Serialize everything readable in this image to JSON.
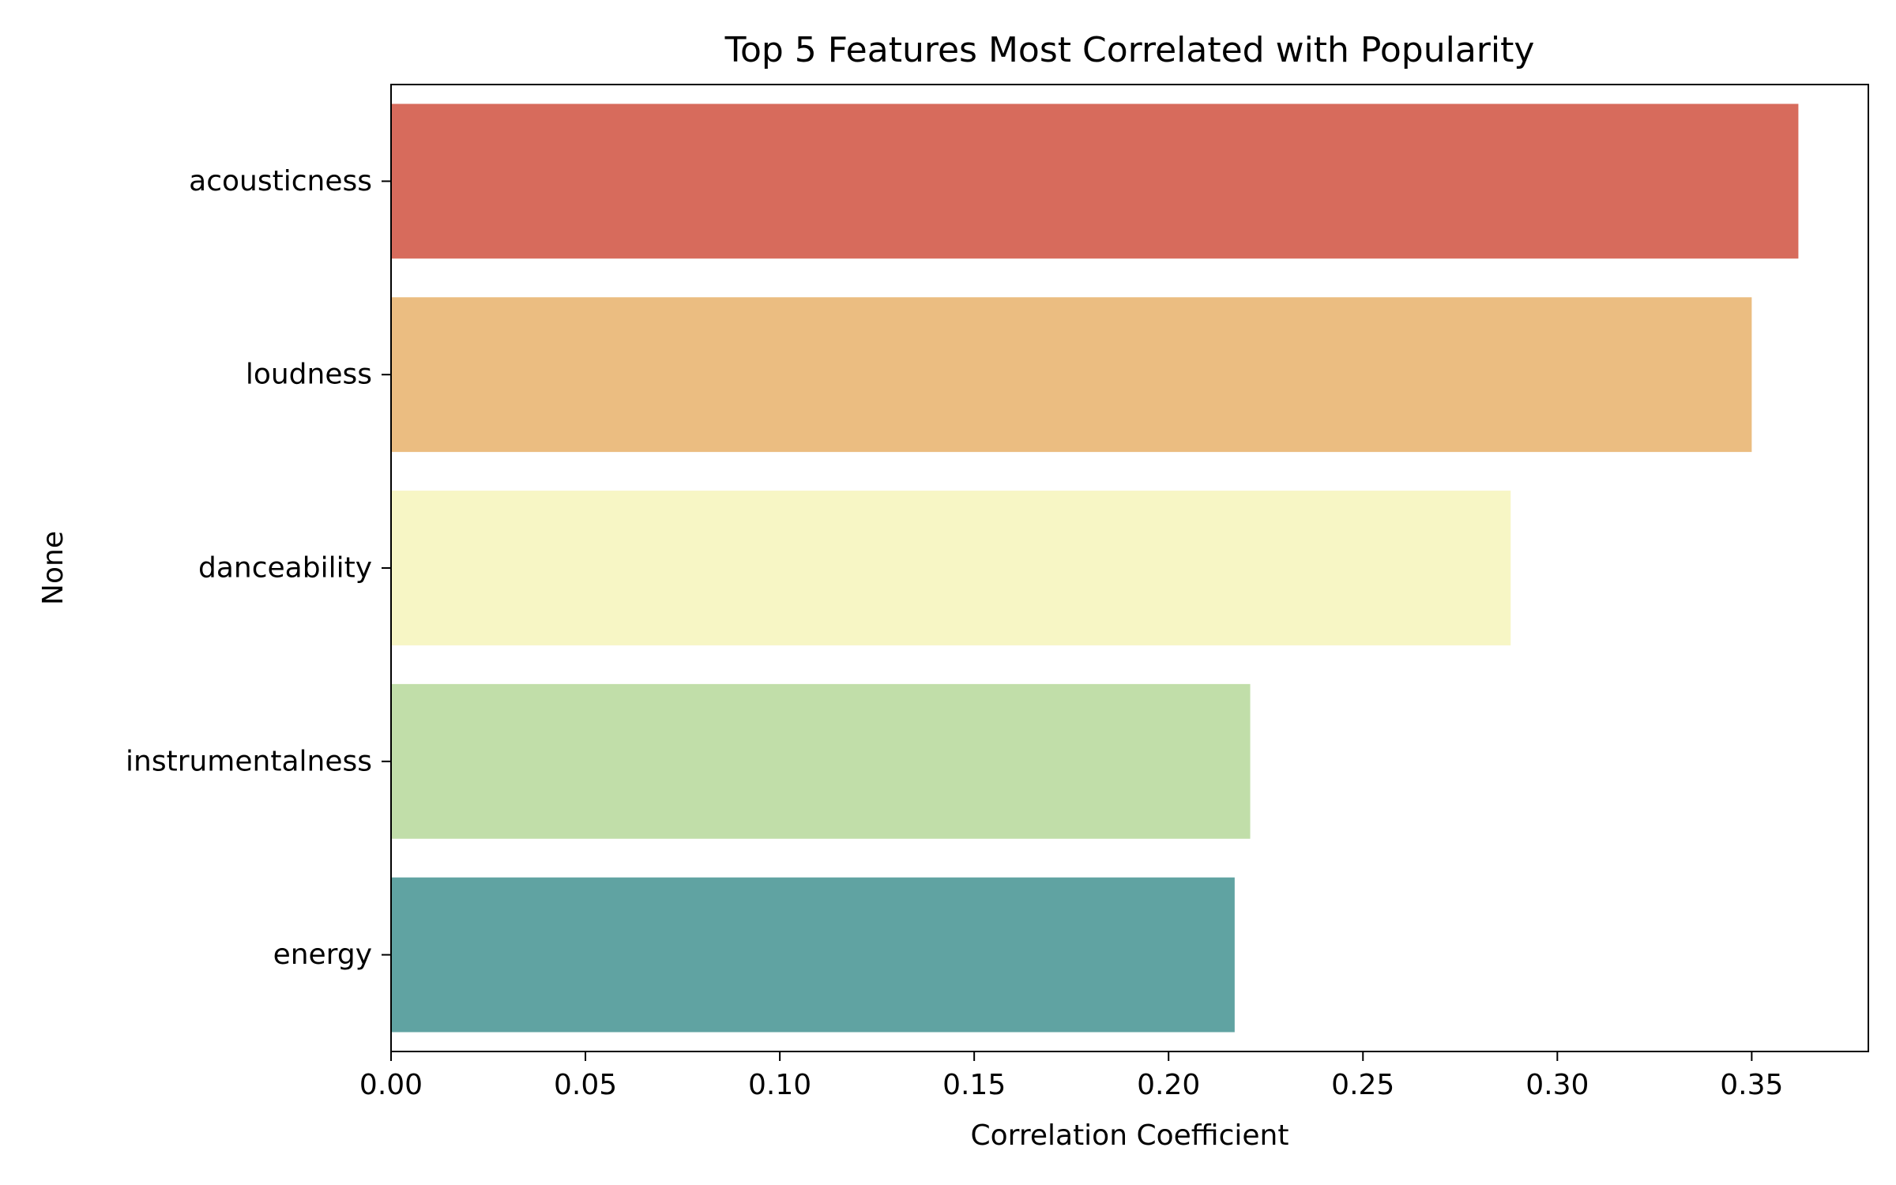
{
  "chart_data": {
    "type": "bar",
    "orientation": "horizontal",
    "title": "Top 5 Features Most Correlated with Popularity",
    "xlabel": "Correlation Coefficient",
    "ylabel": "None",
    "categories": [
      "acousticness",
      "loudness",
      "danceability",
      "instrumentalness",
      "energy"
    ],
    "values": [
      0.362,
      0.35,
      0.288,
      0.221,
      0.217
    ],
    "colors": [
      "#d76b5c",
      "#ebbd81",
      "#f7f6c5",
      "#c1dea9",
      "#60a3a2"
    ],
    "xlim": [
      0,
      0.38
    ],
    "xticks": [
      0.0,
      0.05,
      0.1,
      0.15,
      0.2,
      0.25,
      0.3,
      0.35
    ],
    "xtick_labels": [
      "0.00",
      "0.05",
      "0.10",
      "0.15",
      "0.20",
      "0.25",
      "0.30",
      "0.35"
    ],
    "grid": false,
    "legend": "none"
  }
}
